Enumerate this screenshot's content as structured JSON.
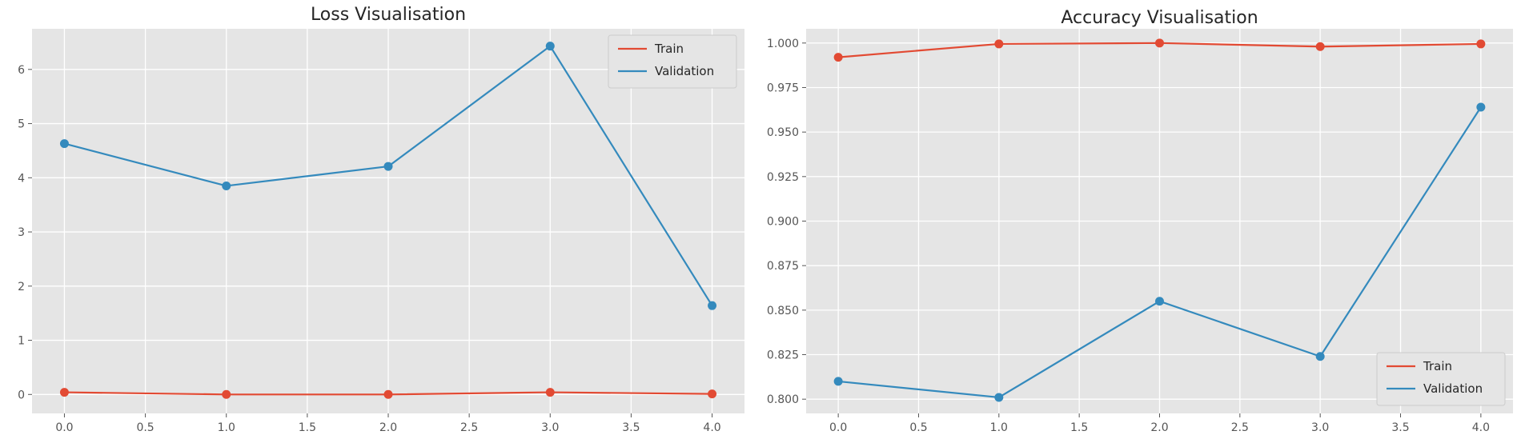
{
  "chart_data": [
    {
      "type": "line",
      "title": "Loss Visualisation",
      "xlabel": "",
      "ylabel": "",
      "x": [
        0,
        1,
        2,
        3,
        4
      ],
      "xlim": [
        -0.2,
        4.2
      ],
      "ylim": [
        -0.35,
        6.75
      ],
      "xticks": [
        0.0,
        0.5,
        1.0,
        1.5,
        2.0,
        2.5,
        3.0,
        3.5,
        4.0
      ],
      "yticks": [
        0,
        1,
        2,
        3,
        4,
        5,
        6
      ],
      "xtick_labels": [
        "0.0",
        "0.5",
        "1.0",
        "1.5",
        "2.0",
        "2.5",
        "3.0",
        "3.5",
        "4.0"
      ],
      "ytick_labels": [
        "0",
        "1",
        "2",
        "3",
        "4",
        "5",
        "6"
      ],
      "grid": true,
      "legend": "top-right",
      "series": [
        {
          "name": "Train",
          "color": "#e24a33",
          "values": [
            0.04,
            0.0,
            0.0,
            0.04,
            0.01
          ]
        },
        {
          "name": "Validation",
          "color": "#348abd",
          "values": [
            4.63,
            3.85,
            4.21,
            6.43,
            1.64
          ]
        }
      ]
    },
    {
      "type": "line",
      "title": "Accuracy Visualisation",
      "xlabel": "",
      "ylabel": "",
      "x": [
        0,
        1,
        2,
        3,
        4
      ],
      "xlim": [
        -0.2,
        4.2
      ],
      "ylim": [
        0.792,
        1.008
      ],
      "xticks": [
        0.0,
        0.5,
        1.0,
        1.5,
        2.0,
        2.5,
        3.0,
        3.5,
        4.0
      ],
      "yticks": [
        0.8,
        0.825,
        0.85,
        0.875,
        0.9,
        0.925,
        0.95,
        0.975,
        1.0
      ],
      "xtick_labels": [
        "0.0",
        "0.5",
        "1.0",
        "1.5",
        "2.0",
        "2.5",
        "3.0",
        "3.5",
        "4.0"
      ],
      "ytick_labels": [
        "0.800",
        "0.825",
        "0.850",
        "0.875",
        "0.900",
        "0.925",
        "0.950",
        "0.975",
        "1.000"
      ],
      "grid": true,
      "legend": "bottom-right",
      "series": [
        {
          "name": "Train",
          "color": "#e24a33",
          "values": [
            0.992,
            0.9995,
            1.0,
            0.998,
            0.9995
          ]
        },
        {
          "name": "Validation",
          "color": "#348abd",
          "values": [
            0.81,
            0.801,
            0.855,
            0.824,
            0.964
          ]
        }
      ]
    }
  ]
}
